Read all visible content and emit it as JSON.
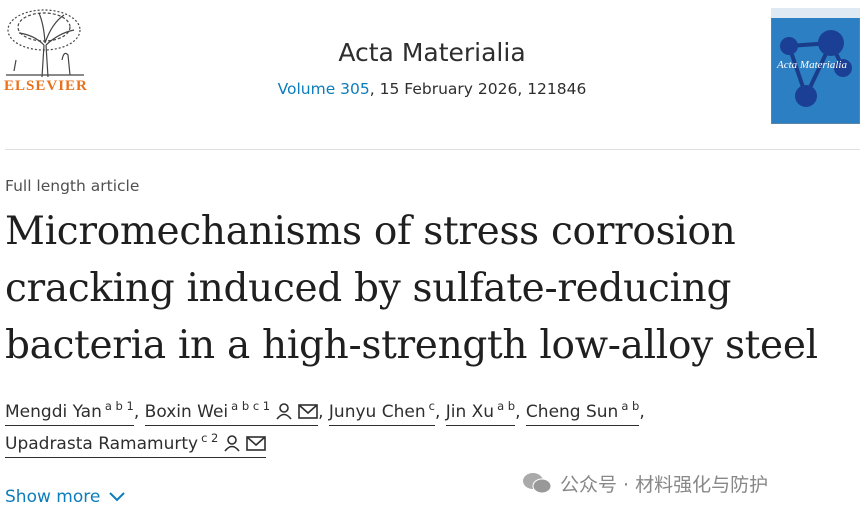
{
  "header": {
    "publisher": "ELSEVIER",
    "journal": "Acta Materialia",
    "volume": "Volume 305",
    "issue_info": ", 15 February 2026, 121846",
    "cover": {
      "title": "Acta Materialia"
    }
  },
  "article": {
    "type": "Full length article",
    "title_lines": [
      "Micromechanisms of stress corrosion",
      "cracking induced by sulfate-reducing",
      "bacteria in a high-strength low-alloy steel"
    ],
    "author_separator": ",",
    "authors": [
      {
        "name": "Mengdi Yan",
        "affiliations": "a b 1"
      },
      {
        "name": "Boxin Wei",
        "affiliations": "a b c 1"
      },
      {
        "name": "Junyu Chen",
        "affiliations": "c"
      },
      {
        "name": "Jin Xu",
        "affiliations": "a b"
      },
      {
        "name": "Cheng Sun",
        "affiliations": "a b"
      },
      {
        "name": "Upadrasta Ramamurty",
        "affiliations": "c 2"
      }
    ],
    "show_more": "Show more"
  },
  "watermark": {
    "text": "公众号 · 材料强化与防护"
  }
}
